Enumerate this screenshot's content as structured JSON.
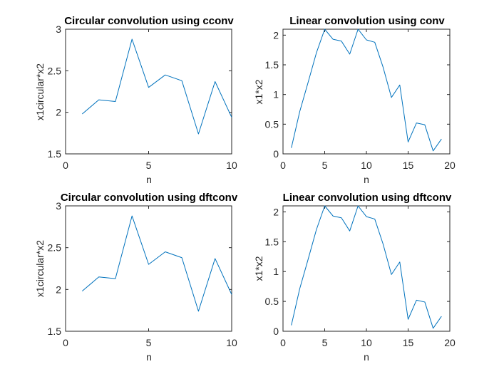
{
  "figure": {
    "background": "#ffffff"
  },
  "chart_data": [
    {
      "type": "line",
      "title": "Circular convolution using cconv",
      "xlabel": "n",
      "ylabel": "x1circular*x2",
      "xlim": [
        0,
        10
      ],
      "ylim": [
        1.5,
        3
      ],
      "xticks": [
        0,
        5,
        10
      ],
      "yticks": [
        1.5,
        2,
        2.5,
        3
      ],
      "xtick_labels": [
        "0",
        "5",
        "10"
      ],
      "ytick_labels": [
        "1.5",
        "2",
        "2.5",
        "3"
      ],
      "grid": false,
      "color": "#0072bd",
      "x": [
        1,
        2,
        3,
        4,
        5,
        6,
        7,
        8,
        9,
        10
      ],
      "y": [
        1.98,
        2.15,
        2.13,
        2.88,
        2.3,
        2.45,
        2.38,
        1.74,
        2.37,
        1.94
      ]
    },
    {
      "type": "line",
      "title": "Linear convolution using conv",
      "xlabel": "n",
      "ylabel": "x1*x2",
      "xlim": [
        0,
        20
      ],
      "ylim": [
        0,
        2.1
      ],
      "xticks": [
        0,
        5,
        10,
        15,
        20
      ],
      "yticks": [
        0,
        0.5,
        1,
        1.5,
        2
      ],
      "xtick_labels": [
        "0",
        "5",
        "10",
        "15",
        "20"
      ],
      "ytick_labels": [
        "0",
        "0.5",
        "1",
        "1.5",
        "2"
      ],
      "grid": false,
      "color": "#0072bd",
      "x": [
        1,
        2,
        3,
        4,
        5,
        6,
        7,
        8,
        9,
        10,
        11,
        12,
        13,
        14,
        15,
        16,
        17,
        18,
        19
      ],
      "y": [
        0.1,
        0.71,
        1.2,
        1.7,
        2.1,
        1.93,
        1.9,
        1.68,
        2.1,
        1.92,
        1.88,
        1.46,
        0.95,
        1.16,
        0.2,
        0.52,
        0.49,
        0.05,
        0.25
      ]
    },
    {
      "type": "line",
      "title": "Circular convolution using dftconv",
      "xlabel": "n",
      "ylabel": "x1circular*x2",
      "xlim": [
        0,
        10
      ],
      "ylim": [
        1.5,
        3
      ],
      "xticks": [
        0,
        5,
        10
      ],
      "yticks": [
        1.5,
        2,
        2.5,
        3
      ],
      "xtick_labels": [
        "0",
        "5",
        "10"
      ],
      "ytick_labels": [
        "1.5",
        "2",
        "2.5",
        "3"
      ],
      "grid": false,
      "color": "#0072bd",
      "x": [
        1,
        2,
        3,
        4,
        5,
        6,
        7,
        8,
        9,
        10
      ],
      "y": [
        1.98,
        2.15,
        2.13,
        2.88,
        2.3,
        2.45,
        2.38,
        1.74,
        2.37,
        1.94
      ]
    },
    {
      "type": "line",
      "title": "Linear convolution using dftconv",
      "xlabel": "n",
      "ylabel": "x1*x2",
      "xlim": [
        0,
        20
      ],
      "ylim": [
        0,
        2.1
      ],
      "xticks": [
        0,
        5,
        10,
        15,
        20
      ],
      "yticks": [
        0,
        0.5,
        1,
        1.5,
        2
      ],
      "xtick_labels": [
        "0",
        "5",
        "10",
        "15",
        "20"
      ],
      "ytick_labels": [
        "0",
        "0.5",
        "1",
        "1.5",
        "2"
      ],
      "grid": false,
      "color": "#0072bd",
      "x": [
        1,
        2,
        3,
        4,
        5,
        6,
        7,
        8,
        9,
        10,
        11,
        12,
        13,
        14,
        15,
        16,
        17,
        18,
        19
      ],
      "y": [
        0.1,
        0.71,
        1.2,
        1.7,
        2.1,
        1.93,
        1.9,
        1.68,
        2.1,
        1.92,
        1.88,
        1.46,
        0.95,
        1.16,
        0.2,
        0.52,
        0.49,
        0.05,
        0.25
      ]
    }
  ]
}
